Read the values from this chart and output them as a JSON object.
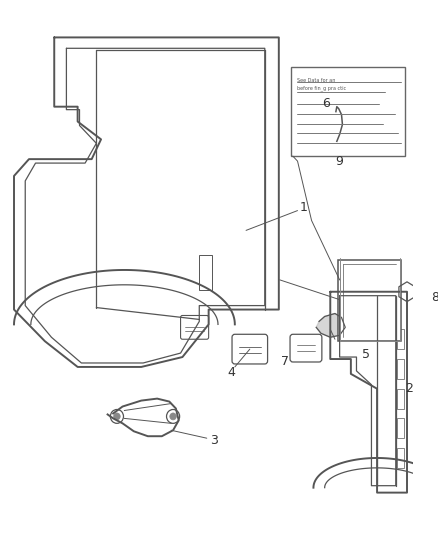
{
  "background_color": "#ffffff",
  "line_color": "#555555",
  "label_color": "#333333",
  "figsize": [
    4.38,
    5.33
  ],
  "dpi": 100
}
